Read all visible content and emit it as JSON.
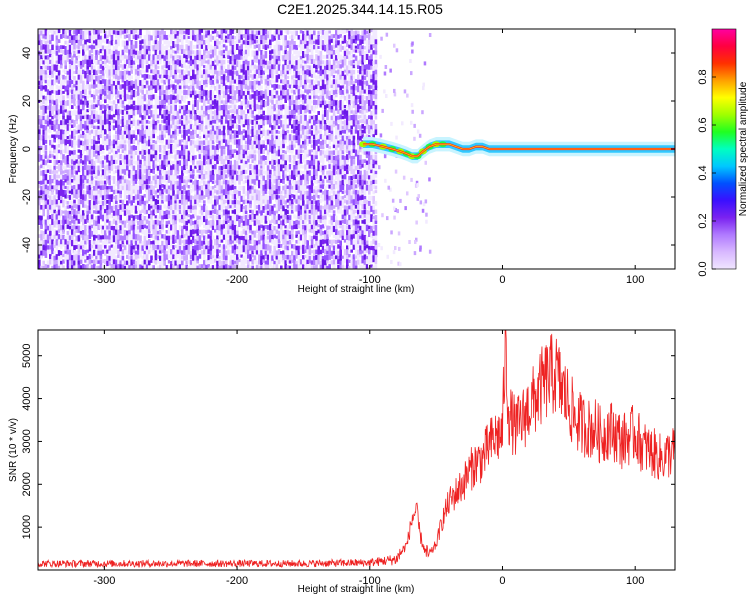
{
  "title": "C2E1.2025.344.14.15.R05",
  "colors": {
    "snr_line": "#ee2222",
    "ridge": "#ee1111",
    "frame": "#000000",
    "spectrogram_noise": "#7a22f0"
  },
  "colorscale": [
    "#f0e6ff",
    "#d8b8ff",
    "#b07aff",
    "#7a22f0",
    "#3a10ff",
    "#0050ff",
    "#00c8ff",
    "#00ffc0",
    "#20ff20",
    "#a0ff00",
    "#ffff00",
    "#ffa000",
    "#ff3000",
    "#ff0040",
    "#ff00a0"
  ],
  "chart_data": [
    {
      "type": "heatmap",
      "xlabel": "Height of straight line (km)",
      "ylabel": "Frequency (Hz)",
      "xlim": [
        -350,
        130
      ],
      "ylim": [
        -50,
        50
      ],
      "xticks": [
        -300,
        -200,
        -100,
        0,
        100
      ],
      "yticks": [
        -40,
        -20,
        0,
        20,
        40
      ],
      "grid": false,
      "noise_region_x": [
        -350,
        -95
      ],
      "ridge": {
        "x": [
          -105,
          -98,
          -90,
          -83,
          -77,
          -72,
          -68,
          -64,
          -60,
          -55,
          -50,
          -45,
          -40,
          -35,
          -30,
          -25,
          -20,
          -15,
          -10,
          0,
          20,
          50,
          80,
          110,
          130
        ],
        "y": [
          2,
          2,
          1,
          0,
          -1,
          -2,
          -3,
          -3,
          -1,
          1,
          2,
          2,
          2,
          1,
          0,
          0,
          1,
          1,
          0,
          0,
          0,
          0,
          0,
          0,
          0
        ]
      },
      "colorbar": {
        "label": "Normalized spectral amplitude",
        "range": [
          0,
          1
        ],
        "ticks": [
          "0.0",
          "0.2",
          "0.4",
          "0.6",
          "0.8"
        ]
      }
    },
    {
      "type": "line",
      "xlabel": "Height of straight line (km)",
      "ylabel": "SNR (10 * v/v)",
      "xlim": [
        -350,
        130
      ],
      "ylim": [
        0,
        5600
      ],
      "xticks": [
        -300,
        -200,
        -100,
        0,
        100
      ],
      "yticks": [
        1000,
        2000,
        3000,
        4000,
        5000
      ],
      "grid": false,
      "series": [
        {
          "x": [
            -350,
            -300,
            -250,
            -200,
            -150,
            -100,
            -80,
            -72,
            -68,
            -65,
            -62,
            -58,
            -55,
            -50,
            -45,
            -40,
            -35,
            -30,
            -25,
            -20,
            -15,
            -10,
            -5,
            0,
            2,
            5,
            10,
            15,
            20,
            25,
            30,
            35,
            40,
            45,
            50,
            55,
            60,
            65,
            70,
            75,
            80,
            85,
            90,
            95,
            100,
            105,
            110,
            115,
            120,
            125,
            130
          ],
          "values": [
            150,
            150,
            150,
            150,
            150,
            170,
            250,
            600,
            1200,
            1400,
            800,
            400,
            350,
            600,
            1200,
            1600,
            1800,
            2000,
            2300,
            2500,
            2600,
            2900,
            3100,
            3200,
            5200,
            3600,
            3300,
            3500,
            3800,
            4000,
            4300,
            4500,
            4600,
            4200,
            3900,
            3500,
            3400,
            3300,
            3300,
            3100,
            3300,
            3200,
            3000,
            3100,
            3200,
            2900,
            2800,
            2700,
            2600,
            2700,
            2800
          ]
        }
      ]
    }
  ]
}
